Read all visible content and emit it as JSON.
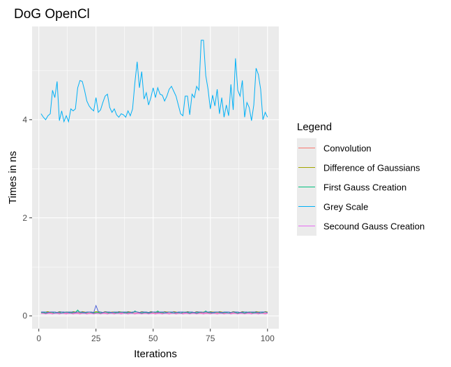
{
  "chart_data": {
    "type": "line",
    "title": "DoG OpenCl",
    "xlabel": "Iterations",
    "ylabel": "Times in ns",
    "xlim": [
      -2.95,
      104.95
    ],
    "ylim": [
      -0.26,
      5.9
    ],
    "x_ticks": [
      0,
      25,
      50,
      75,
      100
    ],
    "y_ticks": [
      0,
      2,
      4
    ],
    "grid": true,
    "legend": {
      "title": "Legend",
      "position": "right"
    },
    "x": [
      1,
      2,
      3,
      4,
      5,
      6,
      7,
      8,
      9,
      10,
      11,
      12,
      13,
      14,
      15,
      16,
      17,
      18,
      19,
      20,
      21,
      22,
      23,
      24,
      25,
      26,
      27,
      28,
      29,
      30,
      31,
      32,
      33,
      34,
      35,
      36,
      37,
      38,
      39,
      40,
      41,
      42,
      43,
      44,
      45,
      46,
      47,
      48,
      49,
      50,
      51,
      52,
      53,
      54,
      55,
      56,
      57,
      58,
      59,
      60,
      61,
      62,
      63,
      64,
      65,
      66,
      67,
      68,
      69,
      70,
      71,
      72,
      73,
      74,
      75,
      76,
      77,
      78,
      79,
      80,
      81,
      82,
      83,
      84,
      85,
      86,
      87,
      88,
      89,
      90,
      91,
      92,
      93,
      94,
      95,
      96,
      97,
      98,
      99,
      100
    ],
    "series": [
      {
        "name": "Convolution",
        "color": "#F8766D",
        "values": [
          0.06,
          0.06,
          0.05,
          0.06,
          0.06,
          0.05,
          0.06,
          0.06,
          0.05,
          0.06,
          0.06,
          0.05,
          0.06,
          0.06,
          0.05,
          0.06,
          0.06,
          0.05,
          0.06,
          0.06,
          0.05,
          0.06,
          0.06,
          0.05,
          0.06,
          0.06,
          0.05,
          0.06,
          0.06,
          0.05,
          0.06,
          0.06,
          0.05,
          0.06,
          0.06,
          0.05,
          0.06,
          0.06,
          0.05,
          0.06,
          0.06,
          0.05,
          0.06,
          0.06,
          0.05,
          0.06,
          0.06,
          0.05,
          0.06,
          0.06,
          0.05,
          0.06,
          0.06,
          0.05,
          0.06,
          0.06,
          0.05,
          0.06,
          0.06,
          0.05,
          0.06,
          0.06,
          0.05,
          0.06,
          0.06,
          0.05,
          0.06,
          0.06,
          0.05,
          0.06,
          0.06,
          0.05,
          0.06,
          0.06,
          0.05,
          0.06,
          0.06,
          0.05,
          0.06,
          0.06,
          0.05,
          0.06,
          0.06,
          0.05,
          0.06,
          0.06,
          0.05,
          0.06,
          0.06,
          0.05,
          0.06,
          0.06,
          0.05,
          0.06,
          0.06,
          0.05,
          0.06,
          0.06,
          0.05,
          0.06
        ]
      },
      {
        "name": "Difference of Gaussians",
        "color": "#A3A500",
        "values": [
          0.08,
          0.07,
          0.08,
          0.09,
          0.07,
          0.08,
          0.08,
          0.07,
          0.09,
          0.08,
          0.07,
          0.08,
          0.08,
          0.07,
          0.09,
          0.08,
          0.08,
          0.07,
          0.09,
          0.08,
          0.07,
          0.08,
          0.08,
          0.07,
          0.09,
          0.08,
          0.08,
          0.07,
          0.09,
          0.08,
          0.07,
          0.08,
          0.08,
          0.07,
          0.09,
          0.08,
          0.08,
          0.07,
          0.09,
          0.08,
          0.07,
          0.08,
          0.08,
          0.07,
          0.09,
          0.08,
          0.08,
          0.07,
          0.09,
          0.08,
          0.07,
          0.08,
          0.08,
          0.07,
          0.09,
          0.08,
          0.08,
          0.07,
          0.09,
          0.08,
          0.07,
          0.08,
          0.08,
          0.07,
          0.09,
          0.08,
          0.08,
          0.07,
          0.09,
          0.08,
          0.07,
          0.08,
          0.08,
          0.07,
          0.09,
          0.08,
          0.08,
          0.07,
          0.09,
          0.08,
          0.07,
          0.08,
          0.08,
          0.07,
          0.09,
          0.08,
          0.08,
          0.07,
          0.09,
          0.08,
          0.07,
          0.08,
          0.08,
          0.07,
          0.09,
          0.08,
          0.08,
          0.07,
          0.09,
          0.08
        ]
      },
      {
        "name": "First Gauss Creation",
        "color": "#00BF7D",
        "values": [
          0.07,
          0.07,
          0.06,
          0.07,
          0.08,
          0.07,
          0.06,
          0.07,
          0.07,
          0.06,
          0.07,
          0.08,
          0.07,
          0.06,
          0.07,
          0.07,
          0.12,
          0.07,
          0.07,
          0.06,
          0.07,
          0.08,
          0.07,
          0.06,
          0.07,
          0.07,
          0.06,
          0.07,
          0.08,
          0.07,
          0.06,
          0.07,
          0.07,
          0.06,
          0.07,
          0.08,
          0.07,
          0.06,
          0.07,
          0.07,
          0.06,
          0.1,
          0.08,
          0.07,
          0.06,
          0.07,
          0.07,
          0.06,
          0.07,
          0.08,
          0.07,
          0.1,
          0.07,
          0.07,
          0.06,
          0.07,
          0.08,
          0.07,
          0.06,
          0.07,
          0.07,
          0.06,
          0.07,
          0.08,
          0.07,
          0.06,
          0.07,
          0.07,
          0.06,
          0.07,
          0.08,
          0.07,
          0.1,
          0.07,
          0.07,
          0.06,
          0.07,
          0.08,
          0.07,
          0.06,
          0.07,
          0.07,
          0.06,
          0.07,
          0.08,
          0.07,
          0.06,
          0.07,
          0.07,
          0.06,
          0.07,
          0.08,
          0.07,
          0.06,
          0.07,
          0.07,
          0.06,
          0.07,
          0.08,
          0.07
        ]
      },
      {
        "name": "Grey Scale",
        "color": "#00B0F6",
        "values": [
          4.12,
          4.05,
          4.0,
          4.08,
          4.12,
          4.6,
          4.45,
          4.78,
          3.98,
          4.18,
          3.96,
          4.08,
          3.96,
          4.22,
          4.18,
          4.22,
          4.65,
          4.8,
          4.78,
          4.6,
          4.38,
          4.28,
          4.22,
          4.18,
          4.45,
          4.15,
          4.2,
          4.35,
          4.48,
          4.52,
          4.25,
          4.15,
          4.22,
          4.1,
          4.05,
          4.12,
          4.1,
          4.05,
          4.18,
          4.08,
          4.22,
          4.75,
          5.18,
          4.65,
          4.98,
          4.42,
          4.55,
          4.3,
          4.45,
          4.65,
          4.45,
          4.65,
          4.52,
          4.5,
          4.38,
          4.48,
          4.62,
          4.68,
          4.58,
          4.48,
          4.3,
          4.12,
          4.08,
          4.48,
          4.48,
          4.1,
          4.52,
          4.45,
          4.68,
          4.6,
          5.62,
          5.62,
          4.9,
          4.62,
          4.22,
          4.5,
          4.28,
          4.62,
          4.12,
          4.45,
          4.05,
          4.3,
          4.08,
          4.72,
          4.2,
          5.25,
          4.6,
          4.48,
          4.8,
          4.05,
          4.35,
          4.25,
          3.98,
          4.3,
          5.05,
          4.92,
          4.62,
          4.0,
          4.15,
          4.05
        ]
      },
      {
        "name": "Secound Gauss Creation",
        "color": "#E76BF3",
        "values": [
          0.05,
          0.05,
          0.04,
          0.05,
          0.05,
          0.04,
          0.05,
          0.05,
          0.04,
          0.05,
          0.05,
          0.04,
          0.05,
          0.05,
          0.04,
          0.05,
          0.05,
          0.04,
          0.05,
          0.05,
          0.04,
          0.05,
          0.05,
          0.04,
          0.05,
          0.05,
          0.04,
          0.05,
          0.05,
          0.04,
          0.05,
          0.05,
          0.04,
          0.05,
          0.05,
          0.04,
          0.05,
          0.05,
          0.04,
          0.05,
          0.05,
          0.04,
          0.05,
          0.05,
          0.04,
          0.05,
          0.05,
          0.04,
          0.05,
          0.05,
          0.04,
          0.05,
          0.05,
          0.04,
          0.05,
          0.05,
          0.04,
          0.05,
          0.05,
          0.04,
          0.05,
          0.05,
          0.04,
          0.05,
          0.05,
          0.04,
          0.05,
          0.05,
          0.04,
          0.05,
          0.05,
          0.04,
          0.05,
          0.05,
          0.04,
          0.05,
          0.05,
          0.04,
          0.05,
          0.05,
          0.04,
          0.05,
          0.05,
          0.04,
          0.05,
          0.05,
          0.04,
          0.05,
          0.05,
          0.04,
          0.05,
          0.05,
          0.04,
          0.05,
          0.05,
          0.04,
          0.05,
          0.05,
          0.04,
          0.05
        ]
      },
      {
        "name": "",
        "color": "#4F63D8",
        "values": [
          0.08,
          0.08,
          0.08,
          0.07,
          0.08,
          0.08,
          0.08,
          0.07,
          0.08,
          0.08,
          0.08,
          0.07,
          0.08,
          0.08,
          0.08,
          0.07,
          0.08,
          0.08,
          0.08,
          0.07,
          0.08,
          0.08,
          0.08,
          0.07,
          0.21,
          0.09,
          0.08,
          0.07,
          0.08,
          0.08,
          0.08,
          0.07,
          0.08,
          0.08,
          0.08,
          0.07,
          0.08,
          0.08,
          0.08,
          0.07,
          0.08,
          0.08,
          0.08,
          0.07,
          0.08,
          0.08,
          0.08,
          0.07,
          0.08,
          0.08,
          0.08,
          0.07,
          0.08,
          0.08,
          0.08,
          0.07,
          0.08,
          0.08,
          0.08,
          0.07,
          0.08,
          0.08,
          0.08,
          0.07,
          0.08,
          0.08,
          0.08,
          0.07,
          0.08,
          0.08,
          0.08,
          0.07,
          0.08,
          0.08,
          0.08,
          0.07,
          0.08,
          0.08,
          0.08,
          0.07,
          0.08,
          0.08,
          0.08,
          0.07,
          0.08,
          0.08,
          0.08,
          0.07,
          0.08,
          0.08,
          0.08,
          0.07,
          0.08,
          0.08,
          0.08,
          0.07,
          0.08,
          0.08,
          0.08,
          0.07
        ]
      }
    ]
  }
}
